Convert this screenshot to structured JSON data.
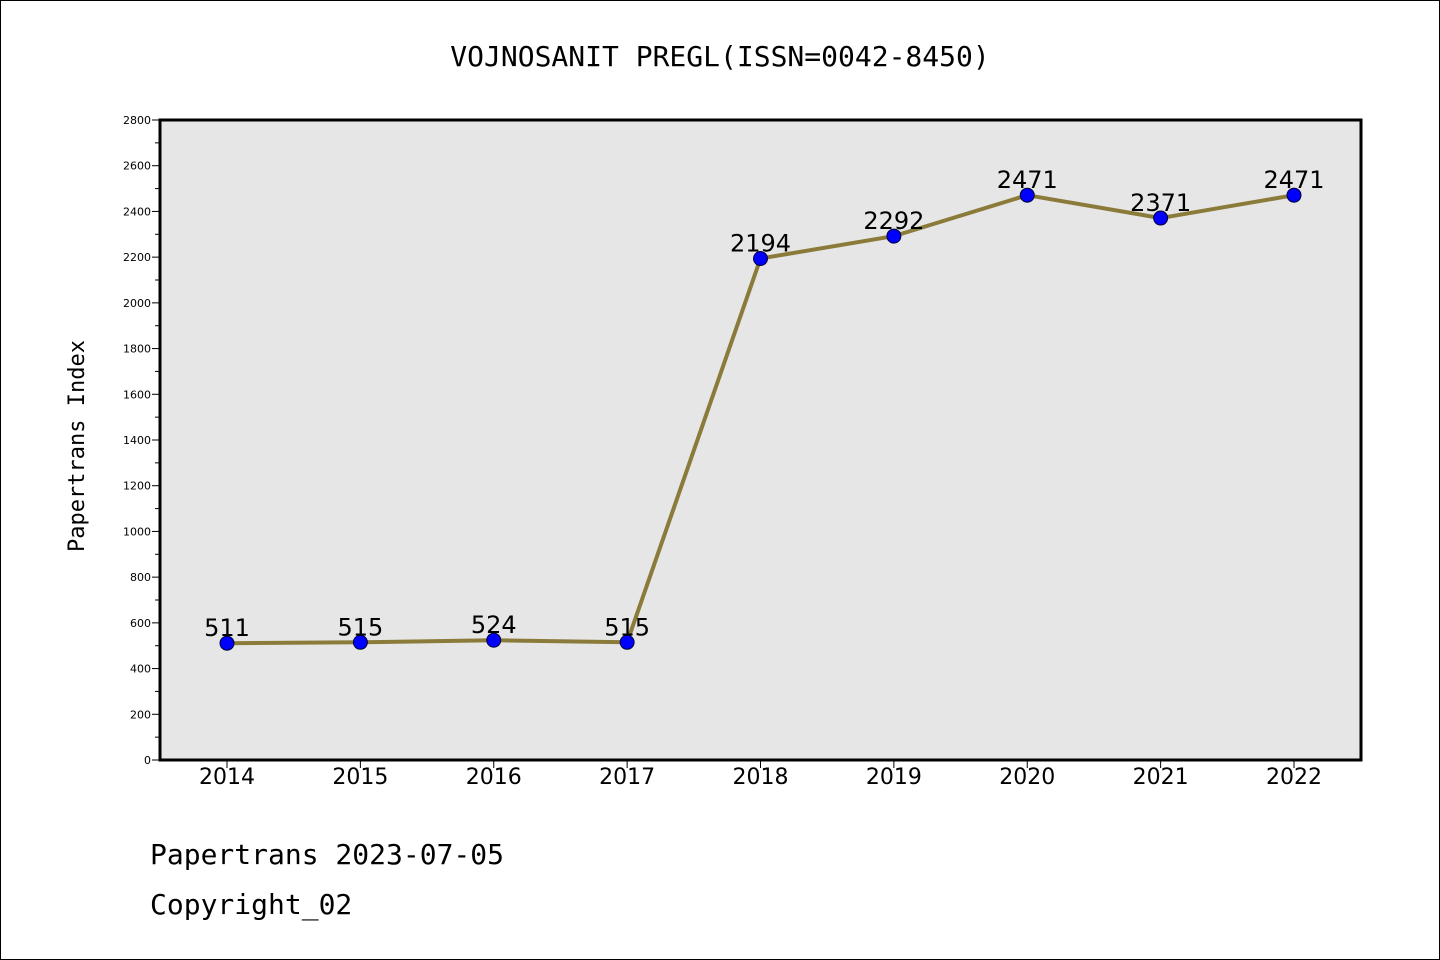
{
  "chart_data": {
    "type": "line",
    "title": "VOJNOSANIT PREGL(ISSN=0042-8450)",
    "xlabel": "",
    "ylabel": "Papertrans Index",
    "categories": [
      "2014",
      "2015",
      "2016",
      "2017",
      "2018",
      "2019",
      "2020",
      "2021",
      "2022"
    ],
    "series": [
      {
        "values": [
          511,
          515,
          524,
          515,
          2194,
          2292,
          2471,
          2371,
          2471
        ]
      }
    ],
    "data_labels": [
      "511",
      "515",
      "524",
      "515",
      "2194",
      "2292",
      "2471",
      "2371",
      "2471"
    ],
    "ylim": [
      0,
      2800
    ],
    "yticks": [
      0,
      200,
      400,
      600,
      800,
      1000,
      1200,
      1400,
      1600,
      1800,
      2000,
      2200,
      2400,
      2600,
      2800
    ],
    "grid": false,
    "legend": "none",
    "colors": {
      "line": "#8b7b3a",
      "marker": "#0000ff",
      "plot_background": "#e6e6e6"
    }
  },
  "footer": {
    "line1": "Papertrans 2023-07-05",
    "line2": "Copyright_02"
  }
}
